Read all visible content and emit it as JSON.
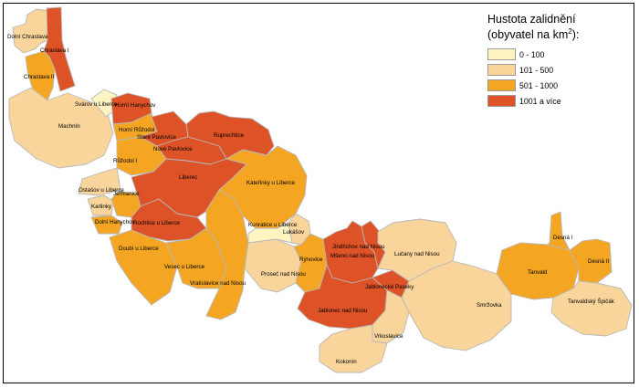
{
  "legend": {
    "title": "Hustota zalidnění",
    "subtitle_prefix": "(obyvatel na km",
    "subtitle_sup": "2",
    "subtitle_suffix": "):",
    "classes": [
      {
        "label": "0 - 100",
        "color": "#fdf4c2"
      },
      {
        "label": "101 - 500",
        "color": "#f9d59b"
      },
      {
        "label": "501 - 1000",
        "color": "#f4a623"
      },
      {
        "label": "1001 a více",
        "color": "#dd5226"
      }
    ]
  },
  "map": {
    "border_color": "#b8b8b8",
    "districts": [
      {
        "name": "Dolní Chrastava",
        "cls": 1
      },
      {
        "name": "Chrastava I",
        "cls": 3
      },
      {
        "name": "Chrastava II",
        "cls": 2
      },
      {
        "name": "Machnín",
        "cls": 1
      },
      {
        "name": "Svárov u Liberce",
        "cls": 0
      },
      {
        "name": "Horní Hanychov",
        "cls": 3
      },
      {
        "name": "Horní Růžodol",
        "cls": 2
      },
      {
        "name": "Ruprechtice",
        "cls": 3
      },
      {
        "name": "Staré Pavlovice",
        "cls": 3
      },
      {
        "name": "Nové Pavlovice",
        "cls": 3
      },
      {
        "name": "Růžodol I",
        "cls": 2
      },
      {
        "name": "Ostašov u Liberce",
        "cls": 1
      },
      {
        "name": "Karlinky",
        "cls": 1
      },
      {
        "name": "Dolní Hanychov",
        "cls": 2
      },
      {
        "name": "Jeřmanice",
        "cls": 2
      },
      {
        "name": "Liberec",
        "cls": 3
      },
      {
        "name": "Rochlice u Liberce",
        "cls": 3
      },
      {
        "name": "Doubí u Liberce",
        "cls": 2
      },
      {
        "name": "Vesec u Liberce",
        "cls": 2
      },
      {
        "name": "Vratislavice nad Nisou",
        "cls": 2
      },
      {
        "name": "Kateřinky u Liberce",
        "cls": 2
      },
      {
        "name": "Proseč nad Nisou",
        "cls": 1
      },
      {
        "name": "Kunratice u Liberce",
        "cls": 0
      },
      {
        "name": "Lukášov",
        "cls": 1
      },
      {
        "name": "Rýnovice",
        "cls": 2
      },
      {
        "name": "Jablonec nad Nisou",
        "cls": 3
      },
      {
        "name": "Jablonecké Paseky",
        "cls": 3
      },
      {
        "name": "Mšeno nad Nisou",
        "cls": 3
      },
      {
        "name": "Vrkoslavice",
        "cls": 1
      },
      {
        "name": "Kokonín",
        "cls": 1
      },
      {
        "name": "Jindřichov nad Nisou",
        "cls": 3
      },
      {
        "name": "Lučany nad Nisou",
        "cls": 1
      },
      {
        "name": "Smržovka",
        "cls": 1
      },
      {
        "name": "Tanvald",
        "cls": 2
      },
      {
        "name": "Desná I",
        "cls": 2
      },
      {
        "name": "Desná II",
        "cls": 2
      },
      {
        "name": "Tanvaldský Špičák",
        "cls": 1
      }
    ],
    "labels": [
      {
        "name": "Dolní Chrastava",
        "text": "Dolní Chrastava"
      },
      {
        "name": "Chrastava I",
        "text": "Chrastava I"
      },
      {
        "name": "Chrastava II",
        "text": "Chrastava II"
      },
      {
        "name": "Machnín",
        "text": "Machnín"
      },
      {
        "name": "Svárov u Liberce",
        "text": "Svárov u Liberce"
      },
      {
        "name": "Horní Hanychov",
        "text": "Horní Hanychov"
      },
      {
        "name": "Horní Růžodol",
        "text": "Horní Růžodol"
      },
      {
        "name": "Ruprechtice",
        "text": "Ruprechtice"
      },
      {
        "name": "Staré Pavlovice",
        "text": "Staré Pavlovice"
      },
      {
        "name": "Nové Pavlovice",
        "text": "Nové Pavlovice"
      },
      {
        "name": "Růžodol I",
        "text": "Růžodol I"
      },
      {
        "name": "Ostašov u Liberce",
        "text": "Ostašov u Liberce"
      },
      {
        "name": "Karlinky",
        "text": "Karlinky"
      },
      {
        "name": "Dolní Hanychov",
        "text": "Dolní Hanychov"
      },
      {
        "name": "Jeřmanice",
        "text": "Jeřmanice"
      },
      {
        "name": "Liberec",
        "text": "Liberec"
      },
      {
        "name": "Rochlice u Liberce",
        "text": "Rochlice u Liberce"
      },
      {
        "name": "Doubí u Liberce",
        "text": "Doubí u Liberce"
      },
      {
        "name": "Vesec u Liberce",
        "text": "Vesec u Liberce"
      },
      {
        "name": "Vratislavice nad Nisou",
        "text": "Vratislavice nad Nisou"
      },
      {
        "name": "Kateřinky u Liberce",
        "text": "Kateřinky u Liberce"
      },
      {
        "name": "Proseč nad Nisou",
        "text": "Proseč nad Nisou"
      },
      {
        "name": "Kunratice u Liberce",
        "text": "Kunratice u Liberce"
      },
      {
        "name": "Lukášov",
        "text": "Lukášov"
      },
      {
        "name": "Rýnovice",
        "text": "Rýnovice"
      },
      {
        "name": "Jablonec nad Nisou",
        "text": "Jablonec nad Nisou"
      },
      {
        "name": "Jablonecké Paseky",
        "text": "Jablonecké Paseky"
      },
      {
        "name": "Mšeno nad Nisou",
        "text": "Mšeno nad Nisou"
      },
      {
        "name": "Vrkoslavice",
        "text": "Vrkoslavice"
      },
      {
        "name": "Kokonín",
        "text": "Kokonín"
      },
      {
        "name": "Jindřichov nad Nisou",
        "text": "Jindřichov nad Nisou"
      },
      {
        "name": "Lučany nad Nisou",
        "text": "Lučany nad Nisou"
      },
      {
        "name": "Smržovka",
        "text": "Smržovka"
      },
      {
        "name": "Tanvald",
        "text": "Tanvald"
      },
      {
        "name": "Desná I",
        "text": "Desná I"
      },
      {
        "name": "Desná II",
        "text": "Desná II"
      },
      {
        "name": "Tanvaldský Špičák",
        "text": "Tanvaldský Špičák"
      }
    ]
  }
}
